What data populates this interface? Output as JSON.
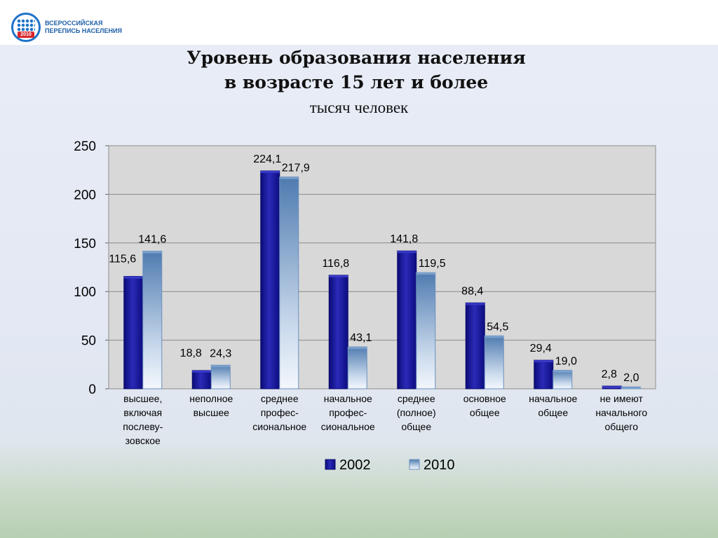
{
  "logo": {
    "line1": "ВСЕРОССИЙСКАЯ",
    "line2": "ПЕРЕПИСЬ НАСЕЛЕНИЯ",
    "year": "2010"
  },
  "chart_data": {
    "type": "bar",
    "title_line1": "Уровень образования населения",
    "title_line2": "в возрасте 15 лет и более",
    "subtitle": "тысяч человек",
    "categories": [
      [
        "высшее,",
        "включая",
        "послеву-",
        "зовское"
      ],
      [
        "неполное",
        "высшее"
      ],
      [
        "среднее",
        "профес-",
        "сиональное"
      ],
      [
        "начальное",
        "профес-",
        "сиональное"
      ],
      [
        "среднее",
        "(полное)",
        "общее"
      ],
      [
        "основное",
        "общее"
      ],
      [
        "начальное",
        "общее"
      ],
      [
        "не имеют",
        "начального",
        "общего"
      ]
    ],
    "series": [
      {
        "name": "2002",
        "values": [
          115.6,
          18.8,
          224.1,
          116.8,
          141.8,
          88.4,
          29.4,
          2.8
        ],
        "labels": [
          "115,6",
          "18,8",
          "224,1",
          "116,8",
          "141,8",
          "88,4",
          "29,4",
          "2,8"
        ],
        "color": "#1a1a9a"
      },
      {
        "name": "2010",
        "values": [
          141.6,
          24.3,
          217.9,
          43.1,
          119.5,
          54.5,
          19.0,
          2.0
        ],
        "labels": [
          "141,6",
          "24,3",
          "217,9",
          "43,1",
          "119,5",
          "54,5",
          "19,0",
          "2,0"
        ],
        "color": "#5b86b8"
      }
    ],
    "yticks": [
      0,
      50,
      100,
      150,
      200,
      250
    ],
    "ylim": [
      0,
      250
    ],
    "grid": true,
    "legend_position": "bottom"
  }
}
